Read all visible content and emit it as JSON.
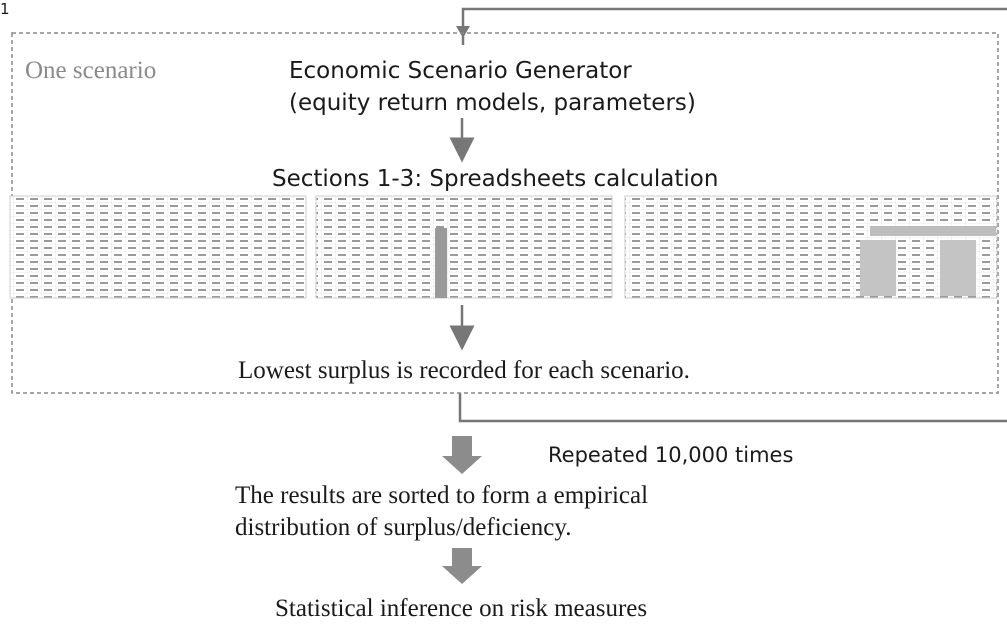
{
  "figure_number": "1",
  "scenario_box": {
    "label": "One scenario"
  },
  "generator": {
    "lines": [
      "Economic Scenario Generator",
      "(equity return models, parameters)"
    ]
  },
  "calculation": {
    "label": "Sections 1-3: Spreadsheets calculation"
  },
  "record": {
    "label": "Lowest surplus is recorded for each scenario."
  },
  "loop": {
    "label": "Repeated 10,000 times"
  },
  "results": {
    "lines": [
      "The results are sorted to form a empirical",
      "distribution of surplus/deficiency."
    ]
  },
  "inference": {
    "label": "Statistical inference on risk measures"
  }
}
